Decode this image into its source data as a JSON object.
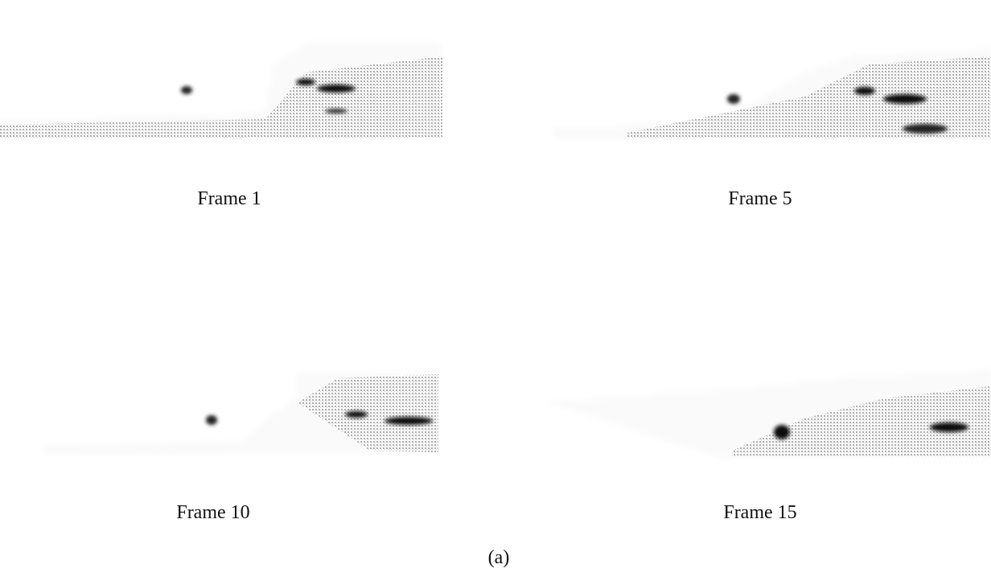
{
  "panels": [
    {
      "caption": "Frame 1"
    },
    {
      "caption": "Frame 5"
    },
    {
      "caption": "Frame 10"
    },
    {
      "caption": "Frame 15"
    }
  ],
  "figure_label": "(a)"
}
